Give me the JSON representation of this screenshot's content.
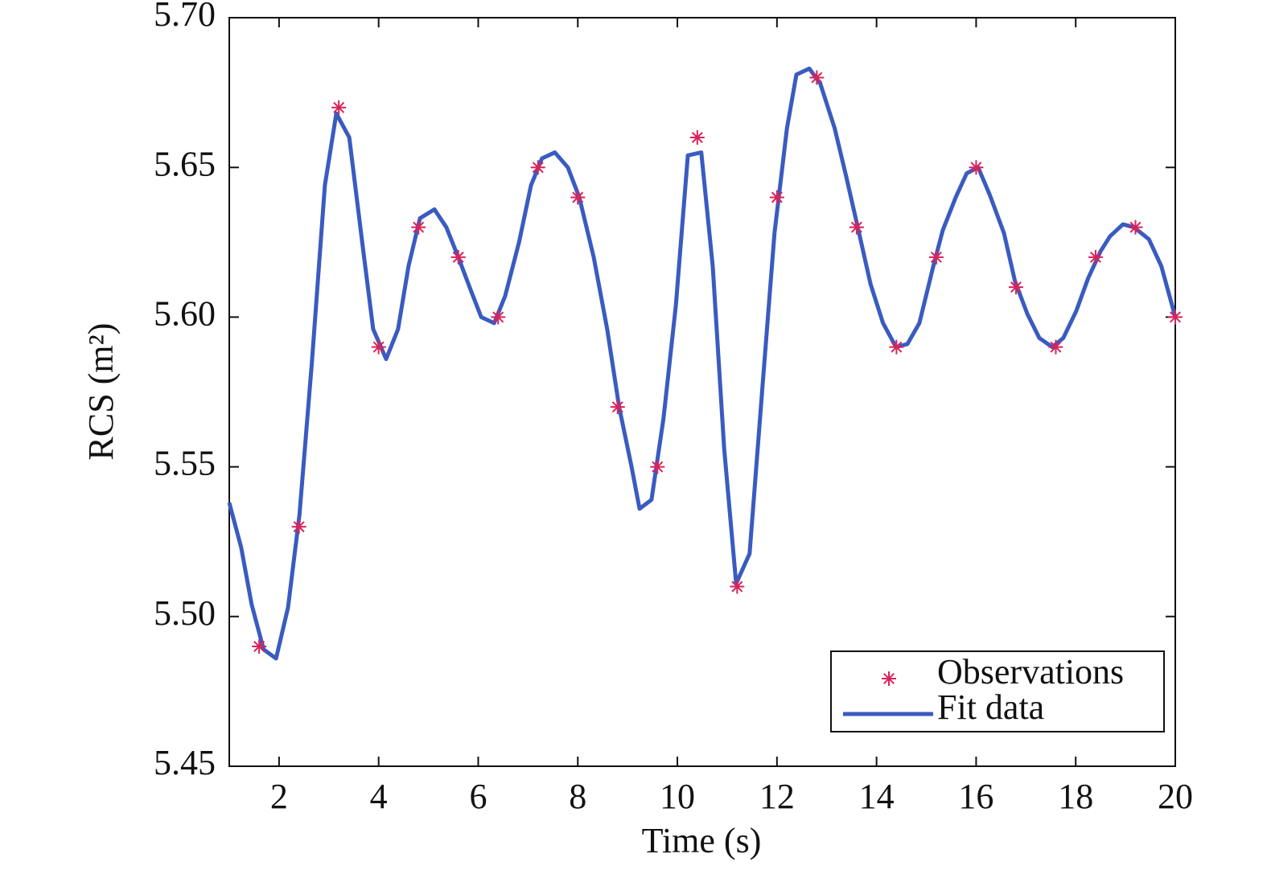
{
  "chart_data": {
    "type": "line",
    "xlabel": "Time (s)",
    "ylabel": "RCS (m²)",
    "xlim": [
      1,
      20
    ],
    "ylim": [
      5.45,
      5.7
    ],
    "xticks": [
      2,
      4,
      6,
      8,
      10,
      12,
      14,
      16,
      18,
      20
    ],
    "yticks": [
      5.45,
      {
        "value": 5.5,
        "label": "5.50"
      },
      5.55,
      {
        "value": 5.6,
        "label": "5.60"
      },
      5.65,
      {
        "value": 5.7,
        "label": "5.70"
      }
    ],
    "legend": "lower right",
    "series": [
      {
        "name": "Observations",
        "type": "scatter",
        "marker": "*",
        "color": "#d8235a",
        "x": [
          1.6,
          2.4,
          3.2,
          4.0,
          4.8,
          5.6,
          6.4,
          7.2,
          8.0,
          8.8,
          9.6,
          10.4,
          11.2,
          12.0,
          12.8,
          13.6,
          14.4,
          15.2,
          16.0,
          16.8,
          17.6,
          18.4,
          19.2,
          20.0
        ],
        "values": [
          5.49,
          5.53,
          5.67,
          5.59,
          5.63,
          5.62,
          5.6,
          5.65,
          5.64,
          5.57,
          5.55,
          5.66,
          5.51,
          5.64,
          5.68,
          5.63,
          5.59,
          5.62,
          5.65,
          5.61,
          5.59,
          5.62,
          5.63,
          5.6
        ]
      },
      {
        "name": "Fit data",
        "type": "line",
        "color": "#3a5bbf",
        "x": [
          1,
          1.24,
          1.45,
          1.69,
          1.94,
          2.18,
          2.41,
          2.66,
          2.92,
          3.15,
          3.41,
          3.67,
          3.89,
          4.15,
          4.39,
          4.6,
          4.83,
          5.12,
          5.36,
          5.6,
          5.85,
          6.06,
          6.32,
          6.54,
          6.82,
          7.06,
          7.28,
          7.54,
          7.8,
          8.03,
          8.32,
          8.59,
          8.83,
          9.08,
          9.24,
          9.48,
          9.72,
          9.97,
          10.21,
          10.48,
          10.71,
          10.94,
          11.18,
          11.45,
          11.71,
          11.95,
          12.2,
          12.39,
          12.65,
          12.87,
          13.16,
          13.39,
          13.65,
          13.88,
          14.13,
          14.39,
          14.62,
          14.86,
          15.14,
          15.33,
          15.59,
          15.81,
          16.04,
          16.27,
          16.56,
          16.78,
          17.03,
          17.27,
          17.53,
          17.75,
          18.01,
          18.25,
          18.5,
          18.69,
          18.95,
          19.17,
          19.47,
          19.72,
          20
        ],
        "values": [
          5.538,
          5.523,
          5.504,
          5.489,
          5.486,
          5.503,
          5.534,
          5.585,
          5.644,
          5.668,
          5.66,
          5.625,
          5.596,
          5.586,
          5.596,
          5.617,
          5.633,
          5.636,
          5.63,
          5.62,
          5.609,
          5.6,
          5.598,
          5.607,
          5.625,
          5.644,
          5.653,
          5.655,
          5.65,
          5.64,
          5.62,
          5.596,
          5.57,
          5.55,
          5.536,
          5.539,
          5.566,
          5.604,
          5.654,
          5.655,
          5.617,
          5.556,
          5.511,
          5.521,
          5.577,
          5.628,
          5.663,
          5.681,
          5.683,
          5.678,
          5.663,
          5.647,
          5.628,
          5.611,
          5.598,
          5.59,
          5.591,
          5.598,
          5.617,
          5.629,
          5.64,
          5.648,
          5.65,
          5.641,
          5.628,
          5.612,
          5.601,
          5.593,
          5.59,
          5.593,
          5.602,
          5.613,
          5.622,
          5.627,
          5.631,
          5.63,
          5.626,
          5.617,
          5.6
        ]
      }
    ]
  }
}
